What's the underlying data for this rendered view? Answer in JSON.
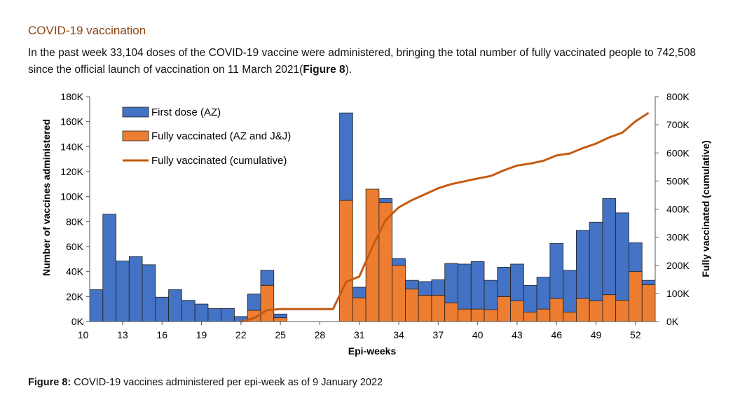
{
  "section": {
    "heading": "COVID-19 vaccination",
    "para_part1": "In the past week 33,104 doses of the COVID-19 vaccine were administered, bringing the total number of fully vaccinated people to 742,508 since the official launch of vaccination on 11 March 2021(",
    "para_bold": "Figure 8",
    "para_part2": ")."
  },
  "caption": {
    "label": "Figure 8:",
    "text": " COVID-19 vaccines administered per epi-week as of 9 January 2022"
  },
  "chart_data": {
    "type": "bar",
    "stacked": true,
    "xlabel": "Epi-weeks",
    "ylabel": "Number of vaccines administered",
    "y2label": "Fully vaccinated (cumulative)",
    "ylim": [
      0,
      180000
    ],
    "y2lim": [
      0,
      800000
    ],
    "yticks": [
      "0K",
      "20K",
      "40K",
      "60K",
      "80K",
      "100K",
      "120K",
      "140K",
      "160K",
      "180K"
    ],
    "y2ticks": [
      "0K",
      "100K",
      "200K",
      "300K",
      "400K",
      "500K",
      "600K",
      "700K",
      "800K"
    ],
    "xticks": [
      "10",
      "13",
      "16",
      "19",
      "22",
      "25",
      "28",
      "31",
      "34",
      "37",
      "40",
      "43",
      "46",
      "49",
      "52"
    ],
    "legend_position": "top-left",
    "colors": {
      "first": "#4472C4",
      "full": "#ED7D31",
      "line": "#C55A11"
    },
    "categories": [
      11,
      12,
      13,
      14,
      15,
      16,
      17,
      18,
      19,
      20,
      21,
      22,
      23,
      24,
      25,
      26,
      27,
      28,
      29,
      30,
      31,
      32,
      33,
      34,
      35,
      36,
      37,
      38,
      39,
      40,
      41,
      42,
      43,
      44,
      45,
      46,
      47,
      48,
      49,
      50,
      51,
      52,
      53
    ],
    "series": [
      {
        "name": "Fully vaccinated (AZ and J&J)",
        "kind": "bar",
        "values": [
          0,
          0,
          0,
          0,
          0,
          0,
          0,
          0,
          0,
          0,
          0,
          0,
          9000,
          29000,
          3000,
          0,
          0,
          0,
          0,
          97000,
          19000,
          106000,
          95000,
          45000,
          26000,
          21000,
          21000,
          15000,
          10000,
          10000,
          9500,
          20000,
          16500,
          7500,
          10000,
          18500,
          7500,
          18500,
          16500,
          21500,
          17000,
          40000,
          29500
        ]
      },
      {
        "name": "First dose (AZ)",
        "kind": "bar",
        "values": [
          25500,
          86000,
          48500,
          52000,
          45500,
          19500,
          25500,
          17000,
          14000,
          10500,
          10500,
          4000,
          13000,
          12000,
          3000,
          0,
          0,
          0,
          0,
          70000,
          8500,
          0,
          3500,
          5500,
          7000,
          11000,
          12500,
          31500,
          36000,
          38000,
          23500,
          23500,
          29500,
          21500,
          25500,
          44000,
          33500,
          54500,
          63000,
          77000,
          70000,
          23000,
          3500
        ]
      },
      {
        "name": "Fully vaccinated (cumulative)",
        "kind": "line",
        "values": [
          null,
          null,
          null,
          null,
          null,
          null,
          null,
          null,
          null,
          null,
          null,
          0,
          12000,
          41000,
          44000,
          44000,
          44000,
          44000,
          44000,
          141000,
          160000,
          266000,
          361000,
          406000,
          432000,
          453000,
          474000,
          489000,
          499000,
          509000,
          518000,
          538000,
          555000,
          562000,
          572000,
          591000,
          598000,
          617000,
          633000,
          655000,
          672000,
          712000,
          742508
        ]
      }
    ]
  }
}
